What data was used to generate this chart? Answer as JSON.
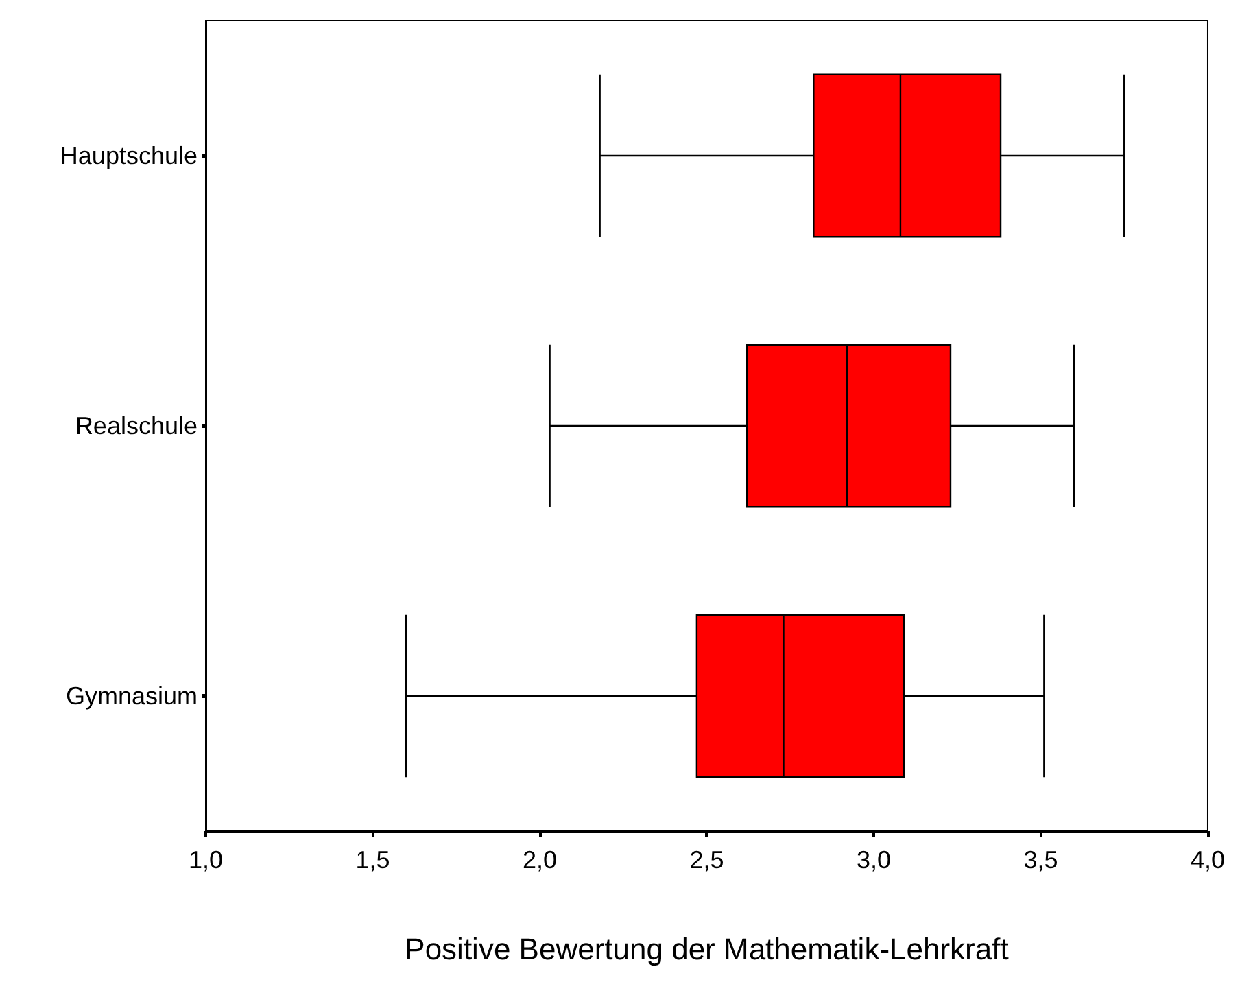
{
  "chart_data": {
    "type": "box",
    "orientation": "horizontal",
    "xlabel": "Positive Bewertung der Mathematik-Lehrkraft",
    "categories": [
      "Hauptschule",
      "Realschule",
      "Gymnasium"
    ],
    "color": "#ff0000",
    "boxes": [
      {
        "low": 2.18,
        "q1": 2.82,
        "median": 3.08,
        "q3": 3.38,
        "high": 3.75
      },
      {
        "low": 2.03,
        "q1": 2.62,
        "median": 2.92,
        "q3": 3.23,
        "high": 3.6
      },
      {
        "low": 1.6,
        "q1": 2.47,
        "median": 2.73,
        "q3": 3.09,
        "high": 3.51
      }
    ],
    "xlim": [
      1,
      4
    ],
    "xticks": [
      {
        "value": 1,
        "label": "1,0"
      },
      {
        "value": 1.5,
        "label": "1,5"
      },
      {
        "value": 2,
        "label": "2,0"
      },
      {
        "value": 2.5,
        "label": "2,5"
      },
      {
        "value": 3,
        "label": "3,0"
      },
      {
        "value": 3.5,
        "label": "3,5"
      },
      {
        "value": 4,
        "label": "4,0"
      }
    ],
    "grid": false
  }
}
